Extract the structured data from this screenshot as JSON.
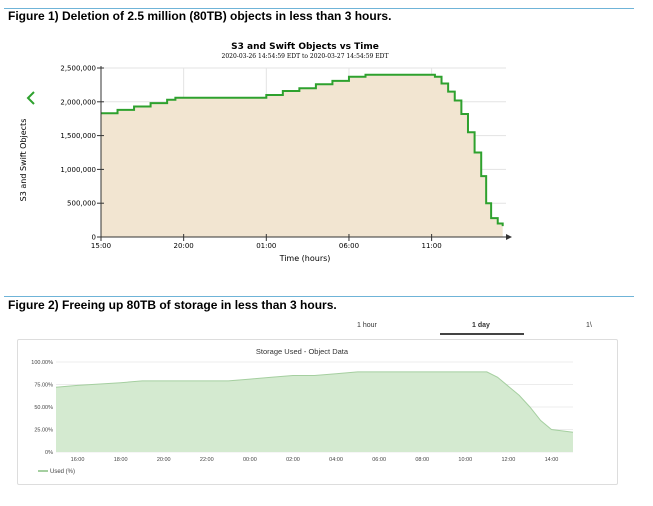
{
  "figure1": {
    "caption": "Figure 1) Deletion of 2.5 million (80TB) objects in less than 3 hours."
  },
  "figure2": {
    "caption": "Figure 2) Freeing up 80TB of storage in less than 3 hours.",
    "tabs": {
      "one_hour": "1 hour",
      "one_day": "1 day",
      "more": "1\\"
    }
  },
  "colors": {
    "line1": "#2ea12e",
    "fill1": "#f2e5d1",
    "line2": "#a5cfa0",
    "fill2": "#d4ead0",
    "rule": "#6fb4d8"
  },
  "chart_data": [
    {
      "type": "area",
      "title": "S3 and Swift Objects vs Time",
      "subtitle": "2020-03-26 14:54:59 EDT to 2020-03-27 14:54:59 EDT",
      "xlabel": "Time (hours)",
      "ylabel": "S3 and Swift Objects",
      "ylim": [
        0,
        2500000
      ],
      "yticks": [
        "0",
        "500,000",
        "1,000,000",
        "1,500,000",
        "2,000,000",
        "2,500,000"
      ],
      "ytick_values": [
        0,
        500000,
        1000000,
        1500000,
        2000000,
        2500000
      ],
      "xtick_labels": [
        "15:00",
        "20:00",
        "01:00",
        "06:00",
        "11:00"
      ],
      "xtick_hours": [
        15,
        20,
        25,
        30,
        35
      ],
      "xlim_hours": [
        15,
        39.5
      ],
      "grid": true,
      "series": [
        {
          "x_hours": [
            15.0,
            16.0,
            17.0,
            18.0,
            19.0,
            19.5,
            20.0,
            21.0,
            22.0,
            23.0,
            24.0,
            25.0,
            26.0,
            27.0,
            28.0,
            29.0,
            30.0,
            31.0,
            32.0,
            33.0,
            34.0,
            35.0,
            35.2,
            35.6,
            36.0,
            36.4,
            36.8,
            37.2,
            37.6,
            38.0,
            38.3,
            38.6,
            39.0,
            39.3
          ],
          "values": [
            1830000,
            1880000,
            1930000,
            1980000,
            2030000,
            2060000,
            2060000,
            2060000,
            2060000,
            2060000,
            2060000,
            2100000,
            2160000,
            2200000,
            2260000,
            2310000,
            2370000,
            2400000,
            2400000,
            2400000,
            2400000,
            2400000,
            2370000,
            2270000,
            2150000,
            2020000,
            1820000,
            1550000,
            1250000,
            900000,
            500000,
            280000,
            200000,
            160000
          ]
        }
      ]
    },
    {
      "type": "area",
      "title": "Storage Used - Object Data",
      "ylim": [
        0,
        100
      ],
      "yticks": [
        "0%",
        "25.00%",
        "50.00%",
        "75.00%",
        "100.00%"
      ],
      "ytick_values": [
        0,
        25,
        50,
        75,
        100
      ],
      "xtick_labels": [
        "16:00",
        "18:00",
        "20:00",
        "22:00",
        "00:00",
        "02:00",
        "04:00",
        "06:00",
        "08:00",
        "10:00",
        "12:00",
        "14:00"
      ],
      "xtick_hours": [
        16,
        18,
        20,
        22,
        24,
        26,
        28,
        30,
        32,
        34,
        36,
        38
      ],
      "xlim_hours": [
        15,
        39
      ],
      "grid": true,
      "legend": "bottom-left",
      "series": [
        {
          "name": "Used (%)",
          "x_hours": [
            15.0,
            16.0,
            18.0,
            19.0,
            20.0,
            22.0,
            23.0,
            24.0,
            25.0,
            26.0,
            27.0,
            28.0,
            29.0,
            30.0,
            32.0,
            34.0,
            35.0,
            35.5,
            36.5,
            37.0,
            37.5,
            38.0,
            39.0
          ],
          "values": [
            72,
            74,
            77,
            79,
            79,
            79,
            79,
            81,
            83,
            85,
            85,
            87,
            89,
            89,
            89,
            89,
            89,
            83,
            63,
            50,
            35,
            25,
            22
          ]
        }
      ]
    }
  ]
}
